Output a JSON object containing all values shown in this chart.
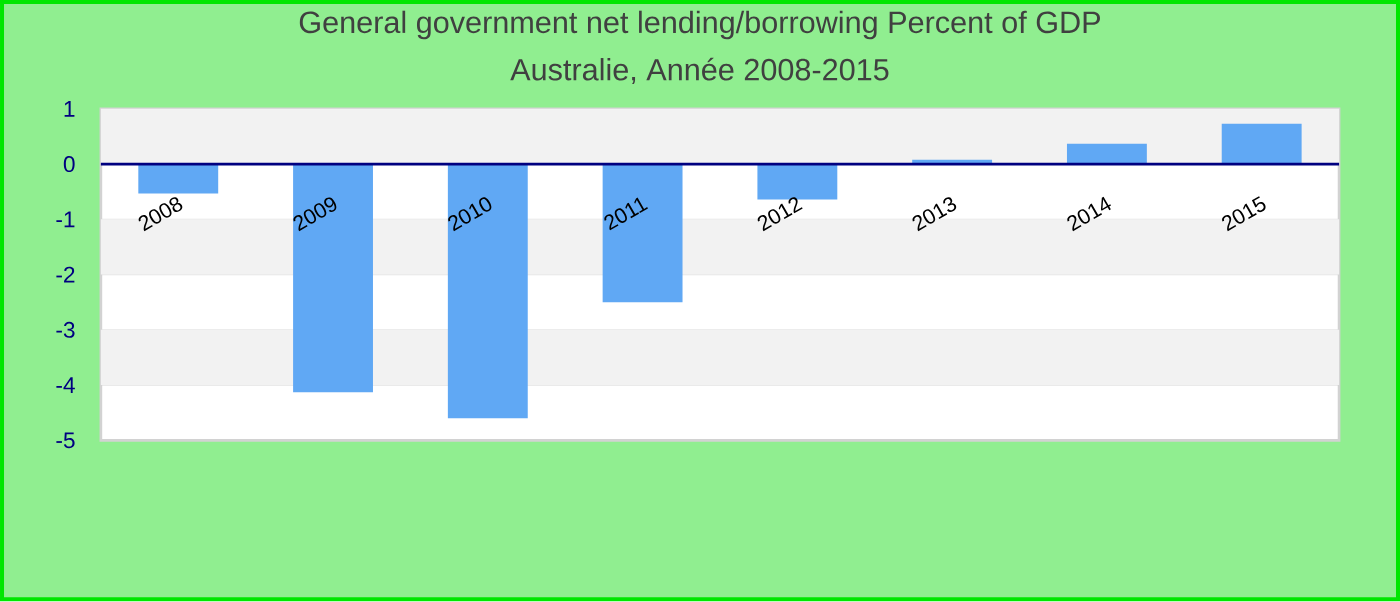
{
  "chart_data": {
    "type": "bar",
    "title": "General government net lending/borrowing  Percent of GDP",
    "subtitle": "Australie, Année 2008-2015",
    "categories": [
      "2008",
      "2009",
      "2010",
      "2011",
      "2012",
      "2013",
      "2014",
      "2015"
    ],
    "values": [
      -0.53,
      -4.13,
      -4.6,
      -2.5,
      -0.64,
      0.08,
      0.37,
      0.73
    ],
    "color": "#60a8f4",
    "ylim": [
      -5,
      1
    ],
    "yticks": [
      -5,
      -4,
      -3,
      -2,
      -1,
      0,
      1
    ],
    "grid": "y"
  }
}
